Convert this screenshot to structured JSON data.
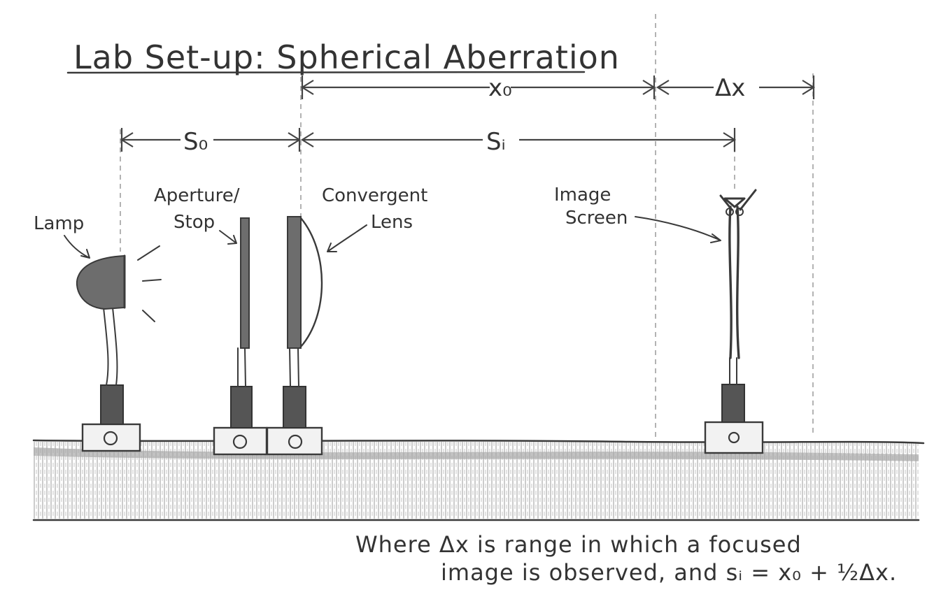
{
  "title": "Lab Set-up: Spherical Aberration",
  "dimensions": {
    "x0": "x₀",
    "delta_x": "Δx",
    "s0": "S₀",
    "si": "Sᵢ"
  },
  "labels": {
    "lamp": "Lamp",
    "aperture_line1": "Aperture/",
    "aperture_line2": "Stop",
    "lens_line1": "Convergent",
    "lens_line2": "Lens",
    "screen_line1": "Image",
    "screen_line2": "Screen"
  },
  "caption": {
    "line1": "Where Δx is range in which a focused",
    "line2": "image is observed, and sᵢ = x₀ + ½Δx."
  }
}
